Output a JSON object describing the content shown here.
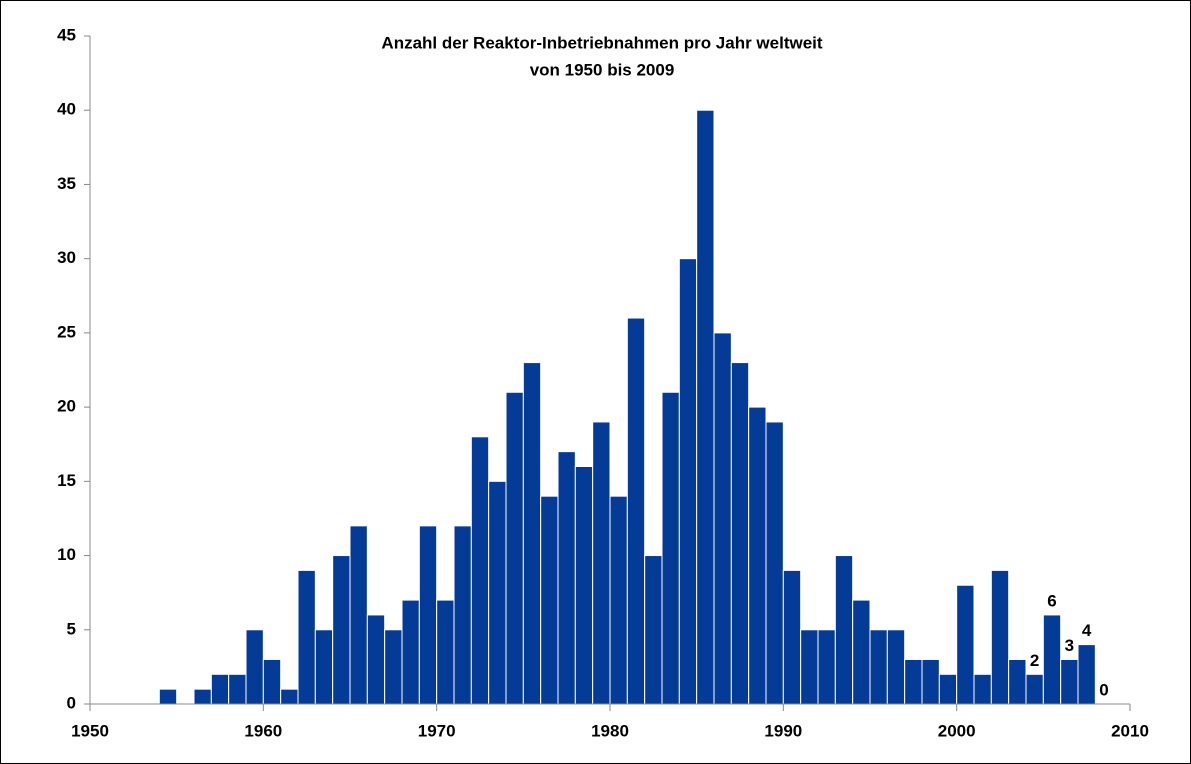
{
  "chart_data": {
    "type": "histogram",
    "title": "Anzahl der Reaktor-Inbetriebnahmen pro Jahr weltweit",
    "subtitle": "von 1950 bis 2009",
    "bins": [
      1954,
      1955,
      1956,
      1957,
      1958,
      1959,
      1960,
      1961,
      1962,
      1963,
      1964,
      1965,
      1966,
      1967,
      1968,
      1969,
      1970,
      1971,
      1972,
      1973,
      1974,
      1975,
      1976,
      1977,
      1978,
      1979,
      1980,
      1981,
      1982,
      1983,
      1984,
      1985,
      1986,
      1987,
      1988,
      1989,
      1990,
      1991,
      1992,
      1993,
      1994,
      1995,
      1996,
      1997,
      1998,
      1999,
      2000,
      2001,
      2002,
      2003,
      2004,
      2005,
      2006,
      2007,
      2008,
      2009
    ],
    "values": [
      1,
      0,
      1,
      2,
      2,
      5,
      3,
      1,
      9,
      5,
      10,
      12,
      6,
      5,
      7,
      12,
      7,
      12,
      18,
      15,
      21,
      23,
      14,
      17,
      16,
      19,
      14,
      26,
      10,
      21,
      30,
      40,
      25,
      23,
      20,
      19,
      9,
      5,
      5,
      10,
      7,
      5,
      5,
      3,
      3,
      2,
      8,
      2,
      9,
      3,
      2,
      6,
      3,
      4,
      0
    ],
    "value_labels": [
      null,
      null,
      null,
      null,
      null,
      null,
      null,
      null,
      null,
      null,
      null,
      null,
      null,
      null,
      null,
      null,
      null,
      null,
      null,
      null,
      null,
      null,
      null,
      null,
      null,
      null,
      null,
      null,
      null,
      null,
      null,
      null,
      null,
      null,
      null,
      null,
      null,
      null,
      null,
      null,
      null,
      null,
      null,
      null,
      null,
      null,
      null,
      null,
      null,
      null,
      "2",
      "6",
      "3",
      "4",
      "0"
    ],
    "color": "#043b97",
    "xlim": [
      1950,
      2010
    ],
    "xticks": [
      1950,
      1960,
      1970,
      1980,
      1990,
      2000,
      2010
    ],
    "ylim": [
      0,
      45
    ],
    "yticks": [
      0,
      5,
      10,
      15,
      20,
      25,
      30,
      35,
      40,
      45
    ],
    "grid": false
  }
}
